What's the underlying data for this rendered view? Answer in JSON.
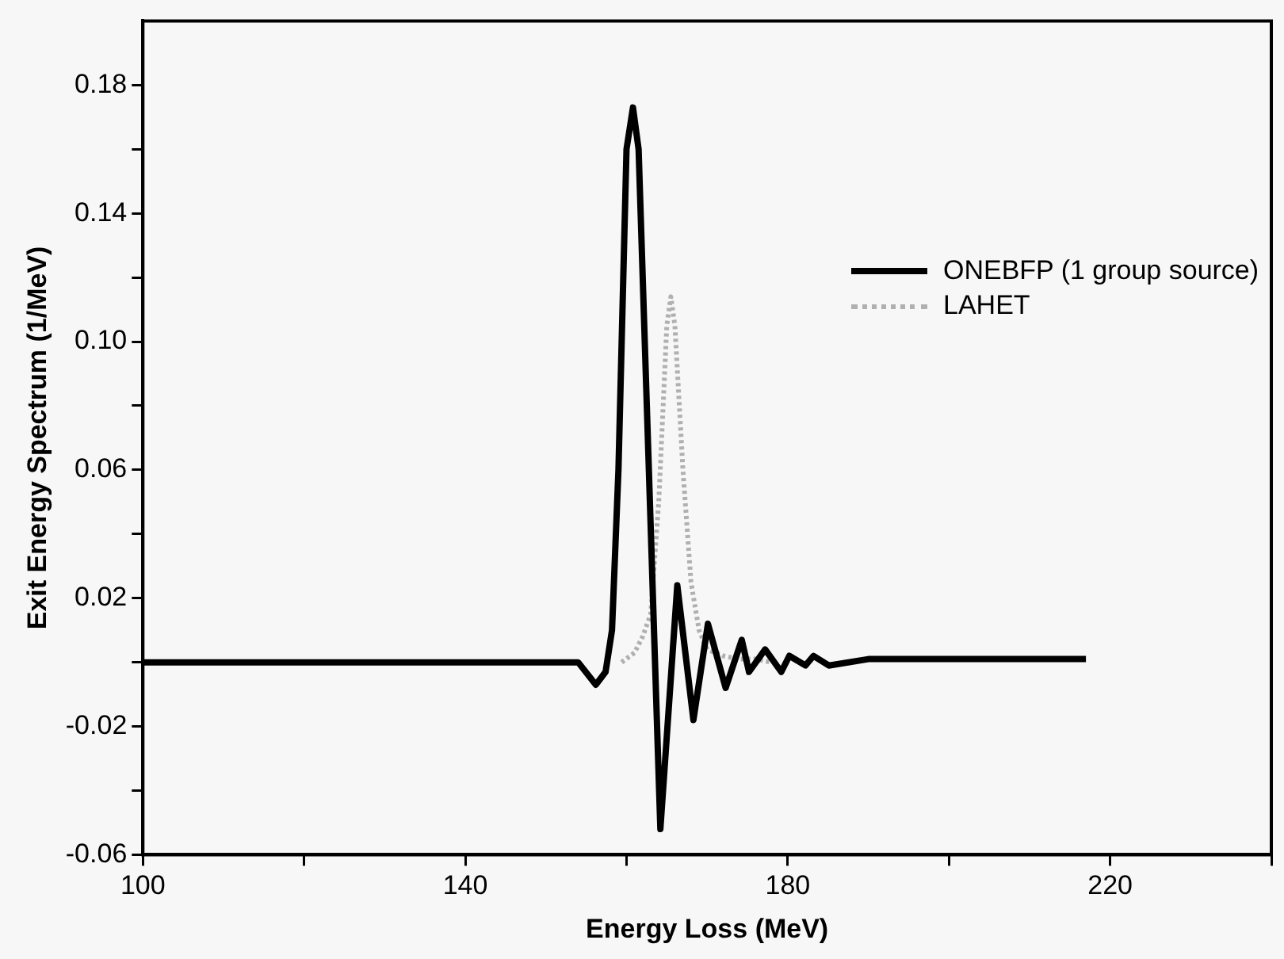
{
  "chart_data": {
    "type": "line",
    "xlabel": "Energy Loss (MeV)",
    "ylabel": "Exit Energy Spectrum (1/MeV)",
    "xlim": [
      100,
      240
    ],
    "xticks": [
      100,
      {
        "value": 120,
        "label": null
      },
      140,
      {
        "value": 160,
        "label": null
      },
      180,
      {
        "value": 200,
        "label": null
      },
      220,
      {
        "value": 240,
        "label": null
      }
    ],
    "ylim": [
      -0.06,
      0.2
    ],
    "yticks": [
      -0.06,
      {
        "value": -0.04,
        "label": null
      },
      -0.02,
      {
        "value": 0,
        "label": null
      },
      0.02,
      {
        "value": 0.04,
        "label": null
      },
      0.06,
      {
        "value": 0.08,
        "label": null
      },
      {
        "value": 0.1,
        "label": "0.10"
      },
      {
        "value": 0.12,
        "label": null
      },
      0.14,
      {
        "value": 0.16,
        "label": null
      },
      0.18
    ],
    "grid": false,
    "legend": "right",
    "marker": "none",
    "series": [
      {
        "name": "ONEBFP (1 group source)",
        "color": "#000000",
        "line_style": "solid",
        "x": [
          100,
          154,
          156.2,
          157.4,
          158.2,
          159,
          160,
          160.8,
          161.5,
          164.2,
          166.3,
          168.3,
          170.1,
          172.3,
          174.3,
          175.2,
          177.2,
          179.2,
          180.2,
          182.2,
          183.2,
          185.1,
          190,
          217
        ],
        "values": [
          0,
          0,
          -0.007,
          -0.003,
          0.01,
          0.06,
          0.16,
          0.173,
          0.16,
          -0.052,
          0.024,
          -0.018,
          0.012,
          -0.008,
          0.007,
          -0.003,
          0.004,
          -0.003,
          0.002,
          -0.001,
          0.002,
          -0.001,
          0.001,
          0.001
        ]
      },
      {
        "name": "LAHET",
        "color": "#b0b0b0",
        "line_style": "dotted",
        "x": [
          159.4,
          161,
          162,
          163,
          164,
          165,
          165.5,
          166,
          167,
          168,
          169,
          170,
          172,
          174,
          176,
          178
        ],
        "values": [
          0,
          0.003,
          0.008,
          0.015,
          0.05,
          0.105,
          0.114,
          0.105,
          0.06,
          0.025,
          0.01,
          0.004,
          0.002,
          0.001,
          0.001,
          0
        ]
      }
    ]
  }
}
